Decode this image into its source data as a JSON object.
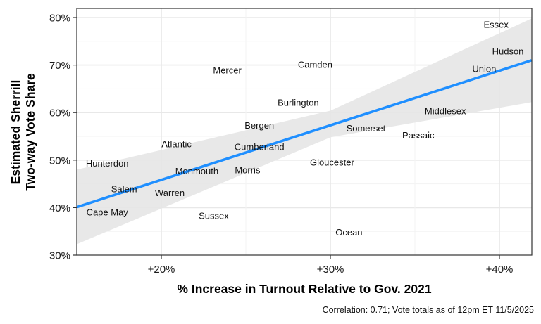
{
  "chart_data": {
    "type": "scatter",
    "title": "",
    "xlabel": "% Increase in Turnout Relative to Gov. 2021",
    "ylabel": "Estimated Sherrill\nTwo-way Vote Share",
    "ylabel_lines": [
      "Estimated Sherrill",
      "Two-way Vote Share"
    ],
    "caption": "Correlation: 0.71; Vote totals as of 12pm ET 11/5/2025",
    "xlim": [
      15,
      41.9
    ],
    "ylim": [
      30,
      82
    ],
    "x_ticks": [
      20,
      30,
      40
    ],
    "x_tick_labels": [
      "+20%",
      "+30%",
      "+40%"
    ],
    "y_ticks": [
      30,
      40,
      50,
      60,
      70,
      80
    ],
    "y_tick_labels": [
      "30%",
      "40%",
      "50%",
      "60%",
      "70%",
      "80%"
    ],
    "grid": true,
    "legend": "none",
    "marker": "text-label",
    "points": [
      {
        "label": "Essex",
        "x": 39.8,
        "y": 78.5
      },
      {
        "label": "Hudson",
        "x": 40.5,
        "y": 72.9
      },
      {
        "label": "Union",
        "x": 39.1,
        "y": 69.2
      },
      {
        "label": "Camden",
        "x": 29.1,
        "y": 70.1
      },
      {
        "label": "Mercer",
        "x": 23.9,
        "y": 68.9
      },
      {
        "label": "Burlington",
        "x": 28.1,
        "y": 62.1
      },
      {
        "label": "Middlesex",
        "x": 36.8,
        "y": 60.3
      },
      {
        "label": "Bergen",
        "x": 25.8,
        "y": 57.3
      },
      {
        "label": "Somerset",
        "x": 32.1,
        "y": 56.7
      },
      {
        "label": "Passaic",
        "x": 35.2,
        "y": 55.2
      },
      {
        "label": "Atlantic",
        "x": 20.9,
        "y": 53.4
      },
      {
        "label": "Cumberland",
        "x": 25.8,
        "y": 52.8
      },
      {
        "label": "Hunterdon",
        "x": 16.8,
        "y": 49.3
      },
      {
        "label": "Gloucester",
        "x": 30.1,
        "y": 49.5
      },
      {
        "label": "Monmouth",
        "x": 22.1,
        "y": 47.7
      },
      {
        "label": "Morris",
        "x": 25.1,
        "y": 47.9
      },
      {
        "label": "Salem",
        "x": 17.8,
        "y": 43.9
      },
      {
        "label": "Warren",
        "x": 20.5,
        "y": 43.1
      },
      {
        "label": "Cape May",
        "x": 16.8,
        "y": 39.0
      },
      {
        "label": "Sussex",
        "x": 23.1,
        "y": 38.3
      },
      {
        "label": "Ocean",
        "x": 31.1,
        "y": 34.8
      }
    ],
    "trend_line": {
      "type": "linear",
      "color": "#1f8fff",
      "start": {
        "x": 15,
        "y": 40.1
      },
      "end": {
        "x": 41.9,
        "y": 71.0
      },
      "confidence_band": {
        "color": "#e6e6e6",
        "upper": [
          {
            "x": 15,
            "y": 48.0
          },
          {
            "x": 30,
            "y": 60.4
          },
          {
            "x": 41.9,
            "y": 79.8
          }
        ],
        "lower": [
          {
            "x": 15,
            "y": 32.3
          },
          {
            "x": 30,
            "y": 54.8
          },
          {
            "x": 41.9,
            "y": 62.2
          }
        ]
      }
    }
  }
}
